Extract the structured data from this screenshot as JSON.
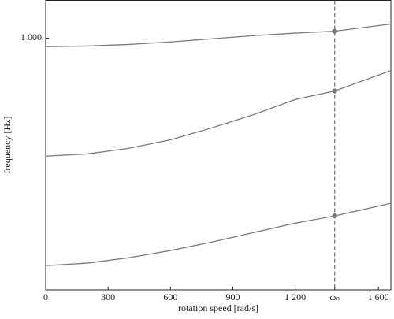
{
  "chart_data": {
    "type": "line",
    "xlabel": "rotation speed [rad/s]",
    "ylabel": "frequency [Hz]",
    "x": [
      0,
      200,
      400,
      600,
      800,
      1000,
      1200,
      1390,
      1660
    ],
    "series": [
      {
        "color": "#7a7a7a",
        "values": [
          973,
          975,
          980,
          988,
          998,
          1008,
          1016,
          1022,
          1045
        ]
      },
      {
        "color": "#7a7a7a",
        "values": [
          625,
          632,
          650,
          677,
          715,
          757,
          805,
          832,
          897
        ]
      },
      {
        "color": "#7a7a7a",
        "values": [
          277,
          285,
          302,
          325,
          352,
          382,
          412,
          435,
          475
        ]
      }
    ],
    "marker_x": 1390,
    "xlim": [
      0,
      1660
    ],
    "ylim": [
      200,
      1120
    ],
    "xticks": [
      0,
      300,
      600,
      900,
      {
        "value": 1200,
        "label": "1 200"
      },
      {
        "value": 1390,
        "label": "ωₙ"
      },
      {
        "value": 1600,
        "label": "1 600"
      }
    ],
    "yticks": [
      {
        "value": 1000,
        "label": "1 000"
      }
    ],
    "vline_x": 1390,
    "grid": false
  }
}
